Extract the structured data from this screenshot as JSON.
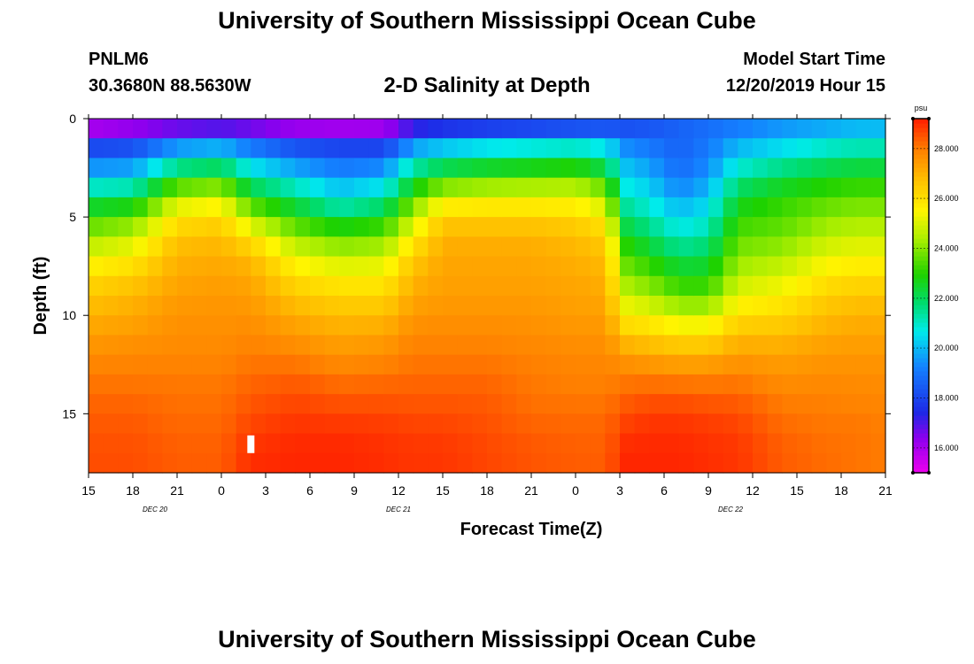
{
  "header": {
    "title": "University of Southern Mississippi Ocean Cube",
    "station_id": "PNLM6",
    "station_coords": "30.3680N 88.5630W",
    "subtitle": "2-D Salinity at Depth",
    "model_start_label": "Model Start Time",
    "model_start_value": "12/20/2019 Hour 15"
  },
  "footer": {
    "title": "University of Southern Mississippi Ocean Cube"
  },
  "chart_data": {
    "type": "heatmap",
    "title": "2-D Salinity at Depth",
    "xlabel": "Forecast Time(Z)",
    "ylabel": "Depth (ft)",
    "x_hours": [
      0,
      54
    ],
    "x_ticks": [
      {
        "h": 0,
        "label": "15"
      },
      {
        "h": 3,
        "label": "18"
      },
      {
        "h": 6,
        "label": "21"
      },
      {
        "h": 9,
        "label": "0"
      },
      {
        "h": 12,
        "label": "3"
      },
      {
        "h": 15,
        "label": "6"
      },
      {
        "h": 18,
        "label": "9"
      },
      {
        "h": 21,
        "label": "12"
      },
      {
        "h": 24,
        "label": "15"
      },
      {
        "h": 27,
        "label": "18"
      },
      {
        "h": 30,
        "label": "21"
      },
      {
        "h": 33,
        "label": "0"
      },
      {
        "h": 36,
        "label": "3"
      },
      {
        "h": 39,
        "label": "6"
      },
      {
        "h": 42,
        "label": "9"
      },
      {
        "h": 45,
        "label": "12"
      },
      {
        "h": 48,
        "label": "15"
      },
      {
        "h": 51,
        "label": "18"
      },
      {
        "h": 54,
        "label": "21"
      }
    ],
    "day_labels": [
      {
        "h": 4.5,
        "label": "DEC 20"
      },
      {
        "h": 21,
        "label": "DEC 21"
      },
      {
        "h": 43.5,
        "label": "DEC 22"
      }
    ],
    "ylim": [
      0,
      18
    ],
    "y_ticks": [
      0,
      5,
      10,
      15
    ],
    "colorbar": {
      "unit": "psu",
      "range": [
        15,
        29.2
      ],
      "ticks": [
        "16.000",
        "18.000",
        "20.000",
        "22.000",
        "24.000",
        "26.000",
        "28.000"
      ]
    },
    "depth_levels_ft": [
      0.3,
      1,
      2,
      3,
      4,
      5,
      6,
      7,
      8,
      9,
      10,
      11,
      12,
      13,
      14,
      15,
      16,
      17,
      18
    ],
    "time_profiles": [
      {
        "h": 0,
        "salinity": [
          15.5,
          17.4,
          18.8,
          20.2,
          21.8,
          23.2,
          24.2,
          25.2,
          26.0,
          26.6,
          27.0,
          27.4,
          27.7,
          28.0,
          28.2,
          28.4,
          28.5,
          28.6,
          28.6
        ]
      },
      {
        "h": 3,
        "salinity": [
          15.8,
          17.6,
          18.9,
          20.4,
          22.0,
          23.6,
          24.7,
          25.6,
          26.4,
          26.9,
          27.2,
          27.5,
          27.8,
          28.0,
          28.2,
          28.4,
          28.5,
          28.6,
          28.6
        ]
      },
      {
        "h": 6,
        "salinity": [
          16.0,
          18.6,
          20.6,
          22.6,
          24.6,
          25.8,
          26.6,
          27.0,
          27.2,
          27.4,
          27.6,
          27.7,
          27.8,
          28.0,
          28.1,
          28.2,
          28.3,
          28.4,
          28.4
        ]
      },
      {
        "h": 9,
        "salinity": [
          16.2,
          18.8,
          21.0,
          23.0,
          25.0,
          26.1,
          26.8,
          27.1,
          27.3,
          27.5,
          27.6,
          27.7,
          27.8,
          28.0,
          28.1,
          28.2,
          28.3,
          28.4,
          28.4
        ]
      },
      {
        "h": 11,
        "salinity": [
          16.0,
          18.4,
          19.8,
          21.4,
          22.8,
          24.4,
          25.8,
          26.8,
          27.2,
          27.4,
          27.6,
          27.8,
          28.0,
          28.2,
          28.4,
          28.6,
          28.8,
          29.0,
          29.0
        ]
      },
      {
        "h": 14,
        "salinity": [
          15.7,
          17.6,
          19.0,
          20.4,
          21.8,
          23.0,
          24.2,
          25.2,
          26.0,
          26.6,
          27.1,
          27.5,
          27.9,
          28.3,
          28.6,
          28.8,
          29.0,
          29.1,
          29.1
        ]
      },
      {
        "h": 17,
        "salinity": [
          15.6,
          17.4,
          18.6,
          19.6,
          20.6,
          22.0,
          23.6,
          24.6,
          25.6,
          26.2,
          26.8,
          27.2,
          27.6,
          28.0,
          28.4,
          28.7,
          29.0,
          29.1,
          29.1
        ]
      },
      {
        "h": 20,
        "salinity": [
          15.7,
          17.3,
          18.7,
          20.0,
          21.2,
          22.6,
          23.8,
          24.8,
          25.6,
          26.2,
          26.8,
          27.3,
          27.7,
          28.1,
          28.4,
          28.7,
          28.9,
          29.0,
          29.0
        ]
      },
      {
        "h": 22,
        "salinity": [
          16.6,
          18.8,
          20.6,
          22.0,
          23.4,
          24.6,
          25.6,
          26.4,
          26.9,
          27.2,
          27.5,
          27.8,
          28.0,
          28.2,
          28.4,
          28.6,
          28.8,
          28.9,
          28.9
        ]
      },
      {
        "h": 24,
        "salinity": [
          17.0,
          19.2,
          21.2,
          23.0,
          25.0,
          26.4,
          27.0,
          27.2,
          27.3,
          27.4,
          27.6,
          27.8,
          28.0,
          28.2,
          28.4,
          28.6,
          28.8,
          28.9,
          28.9
        ]
      },
      {
        "h": 27,
        "salinity": [
          17.2,
          19.6,
          21.6,
          23.4,
          25.2,
          26.4,
          27.0,
          27.2,
          27.3,
          27.4,
          27.6,
          27.8,
          28.0,
          28.2,
          28.4,
          28.5,
          28.6,
          28.7,
          28.7
        ]
      },
      {
        "h": 30,
        "salinity": [
          17.4,
          19.8,
          21.8,
          23.6,
          25.2,
          26.4,
          27.0,
          27.2,
          27.3,
          27.4,
          27.6,
          27.7,
          27.9,
          28.0,
          28.1,
          28.2,
          28.4,
          28.5,
          28.5
        ]
      },
      {
        "h": 33,
        "salinity": [
          17.6,
          20.0,
          22.0,
          23.8,
          25.2,
          26.2,
          26.8,
          27.0,
          27.2,
          27.3,
          27.4,
          27.6,
          27.8,
          27.9,
          28.0,
          28.2,
          28.3,
          28.4,
          28.4
        ]
      },
      {
        "h": 35,
        "salinity": [
          17.8,
          19.8,
          21.4,
          23.0,
          24.4,
          25.6,
          26.4,
          26.8,
          27.0,
          27.2,
          27.4,
          27.6,
          27.8,
          27.9,
          28.0,
          28.2,
          28.3,
          28.4,
          28.4
        ]
      },
      {
        "h": 36.5,
        "salinity": [
          18.0,
          19.0,
          19.8,
          20.4,
          21.0,
          21.8,
          22.6,
          23.4,
          24.0,
          24.8,
          25.6,
          26.6,
          27.4,
          27.9,
          28.3,
          28.6,
          28.9,
          29.1,
          29.1
        ]
      },
      {
        "h": 38,
        "salinity": [
          18.2,
          18.8,
          19.4,
          20.0,
          20.6,
          21.2,
          22.0,
          22.8,
          23.6,
          24.4,
          25.4,
          26.4,
          27.2,
          27.9,
          28.4,
          28.8,
          29.0,
          29.1,
          29.1
        ]
      },
      {
        "h": 40,
        "salinity": [
          18.6,
          18.6,
          18.6,
          19.0,
          19.6,
          20.4,
          21.0,
          22.0,
          22.8,
          23.6,
          24.8,
          26.0,
          27.0,
          27.8,
          28.4,
          28.8,
          29.0,
          29.1,
          29.1
        ]
      },
      {
        "h": 42,
        "salinity": [
          18.8,
          19.0,
          19.2,
          19.6,
          20.2,
          20.8,
          21.4,
          22.2,
          22.8,
          23.6,
          24.8,
          26.0,
          27.0,
          27.8,
          28.3,
          28.7,
          28.9,
          29.0,
          29.0
        ]
      },
      {
        "h": 44,
        "salinity": [
          19.0,
          19.6,
          20.4,
          21.4,
          22.4,
          23.0,
          23.6,
          24.0,
          24.6,
          25.2,
          26.0,
          26.8,
          27.4,
          27.9,
          28.3,
          28.6,
          28.8,
          28.9,
          28.9
        ]
      },
      {
        "h": 47,
        "salinity": [
          19.4,
          20.0,
          21.0,
          22.2,
          23.0,
          23.4,
          23.8,
          24.4,
          25.0,
          25.6,
          26.2,
          26.8,
          27.3,
          27.6,
          27.9,
          28.1,
          28.3,
          28.4,
          28.4
        ]
      },
      {
        "h": 50,
        "salinity": [
          19.6,
          20.4,
          21.6,
          22.6,
          23.4,
          24.0,
          24.6,
          25.2,
          25.8,
          26.4,
          26.8,
          27.2,
          27.5,
          27.7,
          27.9,
          28.0,
          28.1,
          28.2,
          28.2
        ]
      },
      {
        "h": 52,
        "salinity": [
          19.8,
          20.6,
          21.8,
          22.8,
          23.6,
          24.2,
          24.8,
          25.4,
          26.0,
          26.6,
          27.0,
          27.3,
          27.5,
          27.7,
          27.8,
          28.0,
          28.1,
          28.1,
          28.1
        ]
      },
      {
        "h": 54,
        "salinity": [
          19.8,
          20.6,
          21.8,
          22.8,
          23.6,
          24.2,
          24.8,
          25.4,
          26.0,
          26.6,
          27.0,
          27.3,
          27.5,
          27.7,
          27.8,
          27.9,
          28.0,
          28.0,
          28.0
        ]
      }
    ]
  }
}
